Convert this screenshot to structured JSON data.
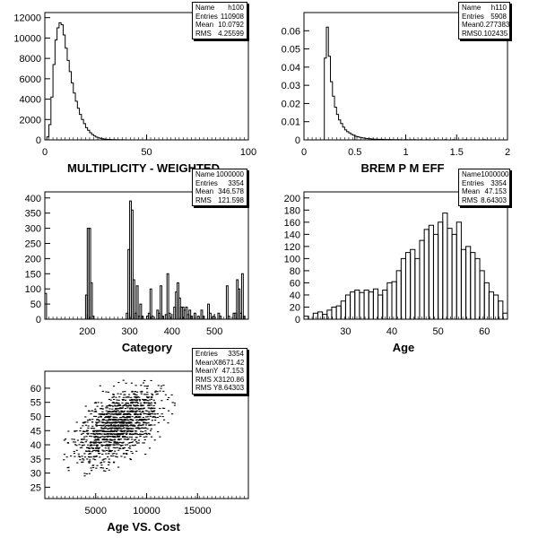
{
  "chart_data": [
    {
      "type": "histogram",
      "xlabel": "MULTIPLICITY - WEIGHTED",
      "xlim": [
        0,
        100
      ],
      "ylim": [
        0,
        12500
      ],
      "xticks": [
        "0",
        "50",
        "100"
      ],
      "yticks": [
        "0",
        "2000",
        "4000",
        "6000",
        "8000",
        "10000",
        "12000"
      ],
      "bin_width": 1,
      "values": [
        0,
        300,
        1500,
        4200,
        7400,
        9800,
        11000,
        11500,
        11300,
        10300,
        9000,
        7800,
        6700,
        5600,
        4600,
        3800,
        3100,
        2500,
        2000,
        1600,
        1200,
        950,
        700,
        520,
        380,
        280,
        200,
        150,
        110,
        80,
        60,
        45,
        35,
        25,
        18,
        14,
        10,
        8,
        6,
        4,
        3,
        2,
        2,
        1,
        1,
        1
      ],
      "stats": [
        {
          "label": "Name",
          "value": "h100"
        },
        {
          "label": "Entries",
          "value": "110908"
        },
        {
          "label": "Mean",
          "value": "10.0792"
        },
        {
          "label": "RMS",
          "value": "4.25599"
        }
      ]
    },
    {
      "type": "histogram",
      "xlabel": "BREM P M EFF",
      "xlim": [
        0,
        2
      ],
      "ylim": [
        0,
        0.07
      ],
      "xticks": [
        "0",
        "0.5",
        "1",
        "1.5",
        "2"
      ],
      "yticks": [
        "0",
        "0.01",
        "0.02",
        "0.03",
        "0.04",
        "0.05",
        "0.06"
      ],
      "bin_width": 0.02,
      "values": [
        0,
        0,
        0,
        0,
        0,
        0,
        0,
        0,
        0,
        0,
        0.045,
        0.062,
        0.046,
        0.032,
        0.024,
        0.018,
        0.014,
        0.011,
        0.009,
        0.007,
        0.0055,
        0.0045,
        0.0038,
        0.003,
        0.0025,
        0.002,
        0.0017,
        0.0014,
        0.0012,
        0.001,
        0.0008,
        0.0007,
        0.0006,
        0.0005,
        0.0004,
        0.0004,
        0.0003,
        0.0003,
        0.0003,
        0.0002,
        0.0002,
        0.0002,
        0.0002,
        0.0001,
        0.0001,
        0.0001,
        0.0001,
        0.0001,
        0,
        0.0001,
        0.0001,
        0,
        0.0001,
        0,
        0.0001,
        0,
        0,
        0.0001,
        0,
        0,
        0.0001,
        0,
        0,
        0,
        0.0001,
        0,
        0,
        0,
        0,
        0.0001,
        0,
        0,
        0,
        0.0001,
        0,
        0,
        0,
        0,
        0,
        0.0001,
        0,
        0,
        0,
        0,
        0,
        0,
        0,
        0,
        0.0001,
        0,
        0,
        0,
        0,
        0,
        0,
        0,
        0,
        0,
        0,
        0
      ],
      "stats": [
        {
          "label": "Name",
          "value": "h110"
        },
        {
          "label": "Entries",
          "value": "5908"
        },
        {
          "label": "Mean",
          "value": "0.277383"
        },
        {
          "label": "RMS",
          "value": "0.102435"
        }
      ]
    },
    {
      "type": "histogram",
      "xlabel": "Category",
      "xlim": [
        100,
        580
      ],
      "ylim": [
        0,
        420
      ],
      "xticks": [
        "200",
        "300",
        "400",
        "500"
      ],
      "yticks": [
        "0",
        "50",
        "100",
        "150",
        "200",
        "250",
        "300",
        "350",
        "400"
      ],
      "bin_width": 4,
      "bins": [
        [
          100,
          85
        ],
        [
          196,
          80
        ],
        [
          200,
          300
        ],
        [
          204,
          300
        ],
        [
          208,
          120
        ],
        [
          212,
          10
        ],
        [
          292,
          20
        ],
        [
          296,
          230
        ],
        [
          300,
          390
        ],
        [
          304,
          360
        ],
        [
          308,
          130
        ],
        [
          312,
          20
        ],
        [
          316,
          110
        ],
        [
          320,
          10
        ],
        [
          324,
          50
        ],
        [
          328,
          10
        ],
        [
          340,
          10
        ],
        [
          344,
          20
        ],
        [
          348,
          100
        ],
        [
          352,
          10
        ],
        [
          364,
          30
        ],
        [
          368,
          20
        ],
        [
          372,
          110
        ],
        [
          376,
          10
        ],
        [
          384,
          15
        ],
        [
          388,
          150
        ],
        [
          392,
          20
        ],
        [
          404,
          40
        ],
        [
          408,
          90
        ],
        [
          412,
          120
        ],
        [
          416,
          70
        ],
        [
          420,
          40
        ],
        [
          424,
          40
        ],
        [
          428,
          30
        ],
        [
          432,
          40
        ],
        [
          436,
          15
        ],
        [
          440,
          30
        ],
        [
          444,
          10
        ],
        [
          452,
          20
        ],
        [
          460,
          10
        ],
        [
          468,
          30
        ],
        [
          472,
          10
        ],
        [
          484,
          50
        ],
        [
          488,
          20
        ],
        [
          496,
          10
        ],
        [
          508,
          20
        ],
        [
          512,
          10
        ],
        [
          528,
          110
        ],
        [
          532,
          10
        ],
        [
          544,
          20
        ],
        [
          548,
          20
        ],
        [
          552,
          130
        ],
        [
          556,
          100
        ],
        [
          560,
          20
        ],
        [
          564,
          150
        ],
        [
          568,
          10
        ]
      ],
      "stats": [
        {
          "label": "Name",
          "value": "1000000"
        },
        {
          "label": "Entries",
          "value": "3354"
        },
        {
          "label": "Mean",
          "value": "346.578"
        },
        {
          "label": "RMS",
          "value": "121.598"
        }
      ]
    },
    {
      "type": "histogram",
      "xlabel": "Age",
      "xlim": [
        21,
        65
      ],
      "ylim": [
        0,
        210
      ],
      "xticks": [
        "30",
        "40",
        "50",
        "60"
      ],
      "yticks": [
        "0",
        "20",
        "40",
        "60",
        "80",
        "100",
        "120",
        "140",
        "160",
        "180",
        "200"
      ],
      "bin_width": 1,
      "bins": [
        [
          21,
          5
        ],
        [
          23,
          10
        ],
        [
          24,
          12
        ],
        [
          25,
          8
        ],
        [
          26,
          15
        ],
        [
          27,
          20
        ],
        [
          28,
          22
        ],
        [
          29,
          30
        ],
        [
          30,
          40
        ],
        [
          31,
          45
        ],
        [
          32,
          48
        ],
        [
          33,
          44
        ],
        [
          34,
          48
        ],
        [
          35,
          45
        ],
        [
          36,
          50
        ],
        [
          37,
          40
        ],
        [
          38,
          48
        ],
        [
          39,
          60
        ],
        [
          40,
          62
        ],
        [
          41,
          80
        ],
        [
          42,
          100
        ],
        [
          43,
          110
        ],
        [
          44,
          115
        ],
        [
          45,
          100
        ],
        [
          46,
          130
        ],
        [
          47,
          148
        ],
        [
          48,
          155
        ],
        [
          49,
          140
        ],
        [
          50,
          160
        ],
        [
          51,
          175
        ],
        [
          52,
          150
        ],
        [
          53,
          140
        ],
        [
          54,
          160
        ],
        [
          55,
          115
        ],
        [
          56,
          120
        ],
        [
          57,
          110
        ],
        [
          58,
          100
        ],
        [
          59,
          80
        ],
        [
          60,
          60
        ],
        [
          61,
          45
        ],
        [
          62,
          40
        ],
        [
          63,
          30
        ],
        [
          64,
          10
        ]
      ],
      "stats": [
        {
          "label": "Name",
          "value": "1000000"
        },
        {
          "label": "Entries",
          "value": "3354"
        },
        {
          "label": "Mean",
          "value": "47.153"
        },
        {
          "label": "RMS",
          "value": "8.64303"
        }
      ]
    },
    {
      "type": "scatter",
      "xlabel": "Age VS. Cost",
      "xlim": [
        0,
        20000
      ],
      "ylim": [
        21,
        66
      ],
      "xticks": [
        "5000",
        "10000",
        "15000"
      ],
      "yticks": [
        "25",
        "30",
        "35",
        "40",
        "45",
        "50",
        "55",
        "60"
      ],
      "stats": [
        {
          "label": "Entries",
          "value": "3354"
        },
        {
          "label": "MeanX",
          "value": "8671.42"
        },
        {
          "label": "MeanY",
          "value": "47.153"
        },
        {
          "label": "RMS X",
          "value": "3120.86"
        },
        {
          "label": "RMS Y",
          "value": "8.64303"
        }
      ]
    }
  ]
}
